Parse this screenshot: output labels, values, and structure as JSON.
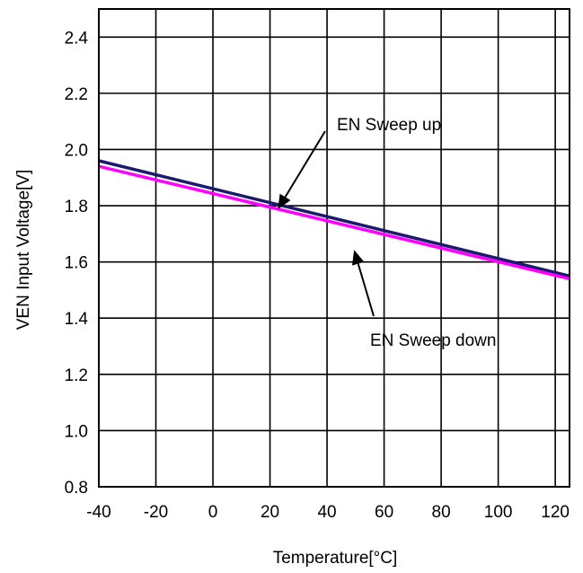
{
  "chart_data": {
    "type": "line",
    "title": "",
    "xlabel": "Temperature[°C]",
    "ylabel": "VEN Input Voltage[V]",
    "xlim": [
      -40,
      125
    ],
    "ylim": [
      0.8,
      2.5
    ],
    "x_ticks": [
      -40,
      -20,
      0,
      20,
      40,
      60,
      80,
      100,
      120
    ],
    "y_ticks": [
      0.8,
      1.0,
      1.2,
      1.4,
      1.6,
      1.8,
      2.0,
      2.2,
      2.4
    ],
    "x_tick_labels": [
      "-40",
      "-20",
      "0",
      "20",
      "40",
      "60",
      "80",
      "100",
      "120"
    ],
    "y_tick_labels": [
      "0.8",
      "1.0",
      "1.2",
      "1.4",
      "1.6",
      "1.8",
      "2.0",
      "2.2",
      "2.4"
    ],
    "grid": true,
    "series": [
      {
        "name": "EN Sweep up",
        "color": "#1a1a6e",
        "x": [
          -40,
          125
        ],
        "y": [
          1.96,
          1.55
        ]
      },
      {
        "name": "EN Sweep down",
        "color": "#ff00ff",
        "x": [
          -40,
          125
        ],
        "y": [
          1.94,
          1.54
        ]
      }
    ],
    "annotations": [
      {
        "text": "EN Sweep up",
        "points_to": {
          "x": 24,
          "y": 1.8
        }
      },
      {
        "text": "EN Sweep down",
        "points_to": {
          "x": 52,
          "y": 1.63
        }
      }
    ]
  }
}
